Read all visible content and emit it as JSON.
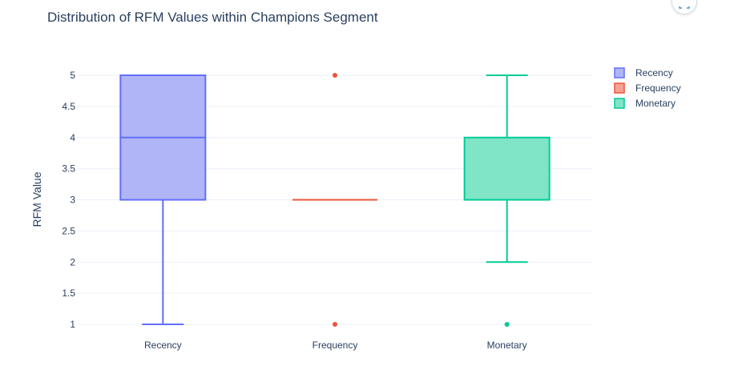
{
  "chart_data": {
    "type": "box",
    "title": "Distribution of RFM Values within Champions Segment",
    "xlabel": "",
    "ylabel": "RFM Value",
    "categories": [
      "Recency",
      "Frequency",
      "Monetary"
    ],
    "yticks": [
      "1",
      "1.5",
      "2",
      "2.5",
      "3",
      "3.5",
      "4",
      "4.5",
      "5"
    ],
    "ylim": [
      0.9,
      5.1
    ],
    "grid": true,
    "legend_position": "top-right",
    "series": [
      {
        "name": "Recency",
        "category": "Recency",
        "color": "#636efa",
        "fill": "#b0b5f8",
        "min": 1,
        "q1": 3,
        "median": 4,
        "q3": 5,
        "max": 5,
        "outliers": []
      },
      {
        "name": "Frequency",
        "category": "Frequency",
        "color": "#ef553b",
        "fill": "#f5a293",
        "min": 3,
        "q1": 3,
        "median": 3,
        "q3": 3,
        "max": 3,
        "outliers": [
          1,
          5
        ]
      },
      {
        "name": "Monetary",
        "category": "Monetary",
        "color": "#00cc96",
        "fill": "#80e4c6",
        "min": 2,
        "q1": 3,
        "median": 3,
        "q3": 4,
        "max": 5,
        "outliers": [
          1
        ]
      }
    ]
  },
  "modebar": {
    "icon": "expand-icon"
  }
}
